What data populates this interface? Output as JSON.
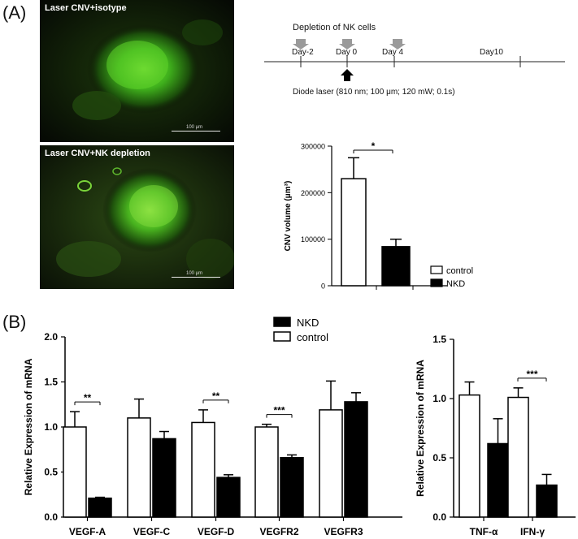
{
  "panel_labels": {
    "a": "(A)",
    "b": "(B)"
  },
  "micrographs": [
    {
      "caption": "Laser CNV+isotype",
      "scale_bar": "100 μm"
    },
    {
      "caption": "Laser CNV+NK depletion",
      "scale_bar": "100 μm"
    }
  ],
  "timeline": {
    "title": "Depletion of NK cells",
    "days": [
      "Day-2",
      "Day 0",
      "Day 4",
      "Day10"
    ],
    "laser_label": "Diode laser (810 nm; 100 μm; 120 mW; 0.1s)",
    "colors": {
      "depletion_arrow": "#9a9a9a",
      "laser_arrow": "#000000"
    }
  },
  "chart_data": [
    {
      "type": "bar",
      "panel": "A",
      "categories": [
        "control",
        "NKD"
      ],
      "values": [
        230000,
        84000
      ],
      "errors": [
        45000,
        16000
      ],
      "ylabel": "CNV volume (μm³)",
      "ylim": [
        0,
        300000
      ],
      "yticks": [
        "0",
        "100000",
        "200000",
        "300000"
      ],
      "significance": [
        {
          "between": [
            0,
            1
          ],
          "label": "*"
        }
      ],
      "legend": [
        {
          "name": "control",
          "fill": "#ffffff"
        },
        {
          "name": "NKD",
          "fill": "#000000"
        }
      ],
      "legend_position": "bottom-right"
    },
    {
      "type": "bar",
      "panel": "B",
      "categories": [
        "VEGF-A",
        "VEGF-C",
        "VEGF-D",
        "VEGFR2",
        "VEGFR3"
      ],
      "series": [
        {
          "name": "control",
          "fill": "#ffffff",
          "values": [
            1.0,
            1.1,
            1.05,
            1.0,
            1.19
          ],
          "errors": [
            0.17,
            0.21,
            0.14,
            0.03,
            0.32
          ]
        },
        {
          "name": "NKD",
          "fill": "#000000",
          "values": [
            0.21,
            0.87,
            0.44,
            0.66,
            1.28
          ],
          "errors": [
            0.01,
            0.08,
            0.03,
            0.03,
            0.1
          ]
        }
      ],
      "ylabel": "Relative Expression of mRNA",
      "ylim": [
        0,
        2.0
      ],
      "yticks": [
        "0.0",
        "0.5",
        "1.0",
        "1.5",
        "2.0"
      ],
      "significance": [
        {
          "category": 0,
          "label": "**"
        },
        {
          "category": 2,
          "label": "**"
        },
        {
          "category": 3,
          "label": "***"
        }
      ],
      "legend": [
        {
          "name": "NKD",
          "fill": "#000000"
        },
        {
          "name": "control",
          "fill": "#ffffff"
        }
      ],
      "legend_position": "top-center"
    },
    {
      "type": "bar",
      "panel": "B",
      "categories": [
        "TNF-α",
        "IFN-γ"
      ],
      "series": [
        {
          "name": "control",
          "fill": "#ffffff",
          "values": [
            1.03,
            1.01
          ],
          "errors": [
            0.11,
            0.08
          ]
        },
        {
          "name": "NKD",
          "fill": "#000000",
          "values": [
            0.62,
            0.27
          ],
          "errors": [
            0.21,
            0.09
          ]
        }
      ],
      "ylabel": "Relative Expression of mRNA",
      "ylim": [
        0,
        1.5
      ],
      "yticks": [
        "0.0",
        "0.5",
        "1.0",
        "1.5"
      ],
      "significance": [
        {
          "category": 1,
          "label": "***"
        }
      ]
    }
  ]
}
